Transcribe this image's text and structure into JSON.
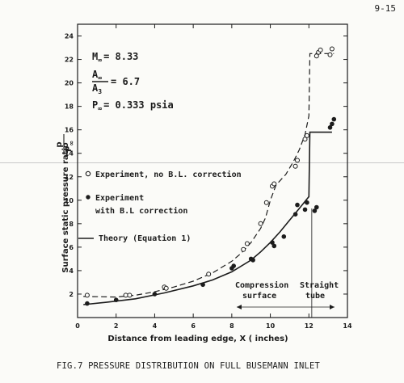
{
  "page_number": "9-15",
  "caption": "FIG.7    PRESSURE DISTRIBUTION ON FULL BUSEMANN INLET",
  "conditions": {
    "mach": {
      "prefix": "M",
      "sub": "∞",
      "value": "= 8.33"
    },
    "area_ratio": {
      "num": "A",
      "num_sub": "∞",
      "den": "A",
      "den_sub": "3",
      "value": "= 6.7"
    },
    "pressure": {
      "prefix": "P",
      "sub": "∞",
      "value": "= 0.333 psia"
    }
  },
  "annotations": {
    "compression_1": "Compression",
    "compression_2": "surface",
    "straight_1": "Straight",
    "straight_2": "tube"
  },
  "chart_data": {
    "type": "scatter",
    "xlabel": "Distance from leading edge, X ( inches)",
    "ylabel": "Surface static pressure ratio",
    "ylabel_ratio": {
      "num": "p",
      "den": "P",
      "den_sub": "∞"
    },
    "xlim": [
      0,
      14
    ],
    "ylim": [
      0,
      25
    ],
    "xticks": [
      0,
      2,
      4,
      6,
      8,
      10,
      12,
      14
    ],
    "yticks": [
      2,
      4,
      6,
      8,
      10,
      12,
      14,
      16,
      18,
      20,
      22,
      24
    ],
    "grid": false,
    "legend_placement": "center-left",
    "series": [
      {
        "name": "Experiment, no B.L. correction",
        "marker": "open-circle",
        "points": [
          [
            0.5,
            1.9
          ],
          [
            2.5,
            1.9
          ],
          [
            2.7,
            1.9
          ],
          [
            4.5,
            2.6
          ],
          [
            4.6,
            2.5
          ],
          [
            6.8,
            3.7
          ],
          [
            8.6,
            5.8
          ],
          [
            8.8,
            6.3
          ],
          [
            9.5,
            8.0
          ],
          [
            9.8,
            9.8
          ],
          [
            10.1,
            11.2
          ],
          [
            10.2,
            11.4
          ],
          [
            11.3,
            12.9
          ],
          [
            11.4,
            13.4
          ],
          [
            11.8,
            15.2
          ],
          [
            11.9,
            15.5
          ],
          [
            12.4,
            22.3
          ],
          [
            12.5,
            22.6
          ],
          [
            12.6,
            22.8
          ],
          [
            13.1,
            22.4
          ],
          [
            13.2,
            22.9
          ]
        ]
      },
      {
        "name": "Experiment with B.L correction",
        "marker": "filled-circle",
        "points": [
          [
            0.5,
            1.2
          ],
          [
            2.0,
            1.5
          ],
          [
            4.0,
            2.0
          ],
          [
            6.5,
            2.8
          ],
          [
            8.0,
            4.2
          ],
          [
            8.1,
            4.4
          ],
          [
            9.0,
            5.0
          ],
          [
            9.1,
            4.9
          ],
          [
            10.1,
            6.4
          ],
          [
            10.2,
            6.1
          ],
          [
            10.7,
            6.9
          ],
          [
            11.3,
            8.8
          ],
          [
            11.4,
            9.6
          ],
          [
            11.8,
            9.2
          ],
          [
            11.9,
            9.8
          ],
          [
            12.3,
            9.1
          ],
          [
            12.4,
            9.4
          ],
          [
            13.1,
            16.2
          ],
          [
            13.2,
            16.5
          ],
          [
            13.3,
            16.9
          ]
        ]
      },
      {
        "name": "Theory (Equation 1)",
        "marker": "solid-line",
        "points": [
          [
            0.3,
            1.1
          ],
          [
            1.5,
            1.3
          ],
          [
            3.0,
            1.6
          ],
          [
            4.5,
            2.1
          ],
          [
            6.0,
            2.7
          ],
          [
            7.0,
            3.2
          ],
          [
            8.0,
            3.9
          ],
          [
            9.0,
            4.9
          ],
          [
            9.5,
            5.6
          ],
          [
            10.0,
            6.4
          ],
          [
            10.5,
            7.3
          ],
          [
            11.0,
            8.3
          ],
          [
            11.5,
            9.3
          ],
          [
            12.0,
            10.3
          ],
          [
            12.05,
            15.8
          ],
          [
            13.2,
            15.8
          ]
        ]
      },
      {
        "marker": "dashed-line",
        "points": [
          [
            0.3,
            1.8
          ],
          [
            2.0,
            1.75
          ],
          [
            3.0,
            1.9
          ],
          [
            4.0,
            2.2
          ],
          [
            5.0,
            2.6
          ],
          [
            6.0,
            3.1
          ],
          [
            7.0,
            3.8
          ],
          [
            8.0,
            4.8
          ],
          [
            8.5,
            5.5
          ],
          [
            9.0,
            6.4
          ],
          [
            9.5,
            7.6
          ],
          [
            9.75,
            8.5
          ],
          [
            10.0,
            10.0
          ],
          [
            10.3,
            11.3
          ],
          [
            10.8,
            12.2
          ],
          [
            11.2,
            13.3
          ],
          [
            11.5,
            14.3
          ],
          [
            11.8,
            15.6
          ],
          [
            12.0,
            17.2
          ],
          [
            12.05,
            22.5
          ],
          [
            13.3,
            22.5
          ]
        ]
      }
    ]
  }
}
